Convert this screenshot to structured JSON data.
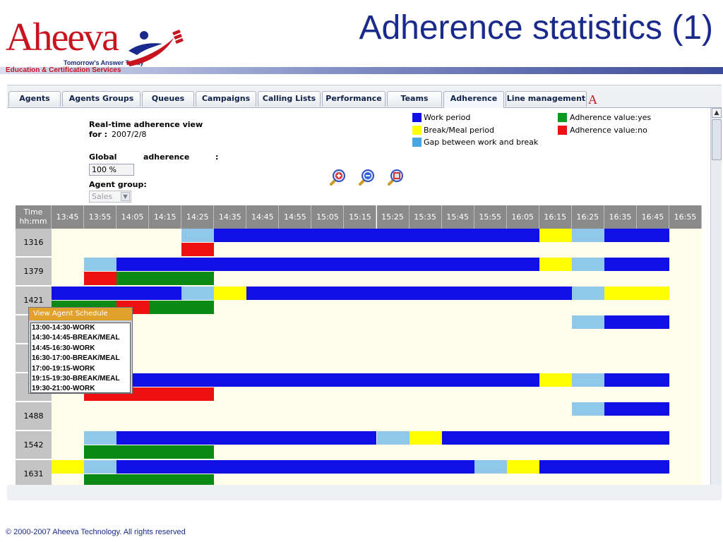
{
  "slide": {
    "title": "Adherence statistics (1)",
    "footer": "© 2000-2007 Aheeva Technology. All rights reserved"
  },
  "logo": {
    "word": "Aheeva",
    "tagline": "Tomorrow's Answer Today",
    "subtitle": "Education & Certification Services"
  },
  "tabs": [
    {
      "label": "Agents"
    },
    {
      "label": "Agents Groups"
    },
    {
      "label": "Queues"
    },
    {
      "label": "Campaigns"
    },
    {
      "label": "Calling Lists"
    },
    {
      "label": "Performance"
    },
    {
      "label": "Teams"
    },
    {
      "label": "Adherence",
      "active": true
    },
    {
      "label": "Line management"
    }
  ],
  "view": {
    "heading": "Real-time adherence view",
    "for_label": "for :",
    "date": "2007/2/8",
    "global_label": "Global",
    "adherence_label": "adherence",
    "colon": ":",
    "adherence_value": "100 %",
    "agent_group_label": "Agent group:",
    "agent_group_value": "Sales"
  },
  "legend": [
    {
      "label": "Work period",
      "color": "#1010e6"
    },
    {
      "label": "Break/Meal period",
      "color": "#ffff00"
    },
    {
      "label": "Gap between work and break",
      "color": "#4aa6e0"
    },
    {
      "label": "Adherence value:yes",
      "color": "#0a9a1e"
    },
    {
      "label": "Adherence value:no",
      "color": "#ee1111"
    }
  ],
  "zoom_icons": [
    "zoom-in-icon",
    "zoom-out-icon",
    "zoom-reset-icon"
  ],
  "colors": {
    "work": "#1010e6",
    "break": "#ffff00",
    "gap": "#90c8ec",
    "yes": "#0a8a14",
    "no": "#ee1111"
  },
  "gantt": {
    "time_header": [
      "Time",
      "hh:mm"
    ],
    "columns": [
      "13:45",
      "13:55",
      "14:05",
      "14:15",
      "14:25",
      "14:35",
      "14:45",
      "14:55",
      "15:05",
      "15:15",
      "15:25",
      "15:35",
      "15:45",
      "15:55",
      "16:05",
      "16:15",
      "16:25",
      "16:35",
      "16:45",
      "16:55"
    ],
    "rows": [
      {
        "agent": "1316",
        "schedule": [
          [
            "gap",
            4,
            5
          ],
          [
            "work",
            5,
            15
          ],
          [
            "break",
            15,
            16
          ],
          [
            "gap",
            16,
            17
          ],
          [
            "work",
            17,
            19
          ]
        ],
        "adherence": [
          [
            "no",
            4,
            5
          ]
        ]
      },
      {
        "agent": "1379",
        "schedule": [
          [
            "gap",
            1,
            2
          ],
          [
            "work",
            2,
            15
          ],
          [
            "break",
            15,
            16
          ],
          [
            "gap",
            16,
            17
          ],
          [
            "work",
            17,
            19
          ]
        ],
        "adherence": [
          [
            "no",
            1,
            2
          ],
          [
            "yes",
            2,
            5
          ]
        ]
      },
      {
        "agent": "1421",
        "schedule": [
          [
            "work",
            0,
            4
          ],
          [
            "gap",
            4,
            5
          ],
          [
            "break",
            5,
            6
          ],
          [
            "work",
            6,
            16
          ],
          [
            "gap",
            16,
            17
          ],
          [
            "break",
            17,
            19
          ]
        ],
        "adherence": [
          [
            "yes",
            0,
            2
          ],
          [
            "no",
            2,
            3
          ],
          [
            "yes",
            3,
            5
          ]
        ]
      },
      {
        "agent": "1",
        "schedule": [
          [
            "gap",
            16,
            17
          ],
          [
            "work",
            17,
            19
          ]
        ],
        "adherence": []
      },
      {
        "agent": "1",
        "schedule": [],
        "adherence": []
      },
      {
        "agent": "1",
        "schedule": [
          [
            "work",
            2,
            15
          ],
          [
            "break",
            15,
            16
          ],
          [
            "gap",
            16,
            17
          ],
          [
            "work",
            17,
            19
          ]
        ],
        "adherence": [
          [
            "no",
            1,
            5
          ]
        ]
      },
      {
        "agent": "1488",
        "schedule": [
          [
            "gap",
            16,
            17
          ],
          [
            "work",
            17,
            19
          ]
        ],
        "adherence": []
      },
      {
        "agent": "1542",
        "schedule": [
          [
            "gap",
            1,
            2
          ],
          [
            "work",
            2,
            10
          ],
          [
            "gap",
            10,
            11
          ],
          [
            "break",
            11,
            12
          ],
          [
            "work",
            12,
            19
          ]
        ],
        "adherence": [
          [
            "yes",
            1,
            5
          ]
        ]
      },
      {
        "agent": "1631",
        "schedule": [
          [
            "break",
            0,
            1
          ],
          [
            "gap",
            1,
            2
          ],
          [
            "work",
            2,
            13
          ],
          [
            "gap",
            13,
            14
          ],
          [
            "break",
            14,
            15
          ],
          [
            "work",
            15,
            19
          ]
        ],
        "adherence": [
          [
            "yes",
            1,
            5
          ]
        ]
      }
    ]
  },
  "popup": {
    "title": "View Agent Schedule",
    "lines": [
      "13:00-14:30-WORK",
      "14:30-14:45-BREAK/MEAL",
      "14:45-16:30-WORK",
      "16:30-17:00-BREAK/MEAL",
      "17:00-19:15-WORK",
      "19:15-19:30-BREAK/MEAL",
      "19:30-21:00-WORK"
    ]
  }
}
